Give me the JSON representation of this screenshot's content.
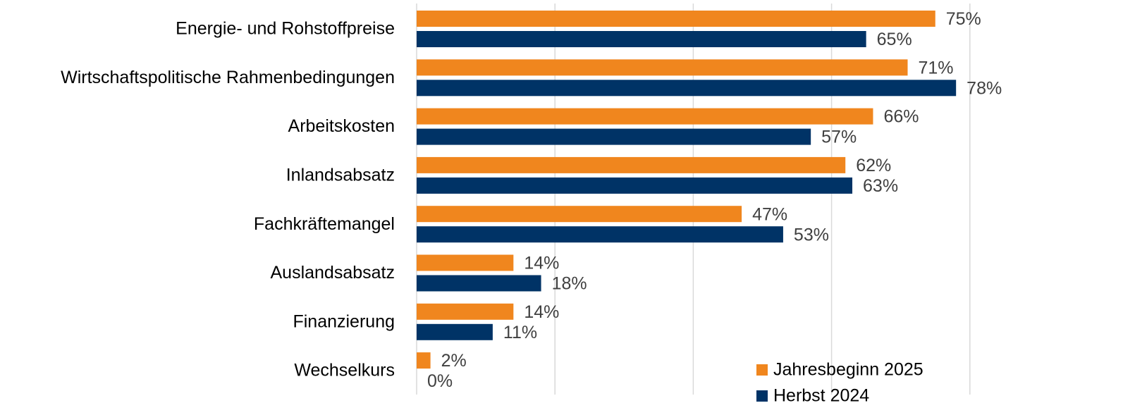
{
  "chart_data": {
    "type": "hbar",
    "categories": [
      "Energie- und Rohstoffpreise",
      "Wirtschaftspolitische Rahmenbedingungen",
      "Arbeitskosten",
      "Inlandsabsatz",
      "Fachkräftemangel",
      "Auslandsabsatz",
      "Finanzierung",
      "Wechselkurs"
    ],
    "series": [
      {
        "name": "Jahresbeginn 2025",
        "color": "#f0861e",
        "values": [
          75,
          71,
          66,
          62,
          47,
          14,
          14,
          2
        ],
        "value_labels": [
          "75%",
          "71%",
          "66%",
          "62%",
          "47%",
          "14%",
          "14%",
          "2%"
        ]
      },
      {
        "name": "Herbst 2024",
        "color": "#003366",
        "values": [
          65,
          78,
          57,
          63,
          53,
          18,
          11,
          0
        ],
        "value_labels": [
          "65%",
          "78%",
          "57%",
          "63%",
          "53%",
          "18%",
          "11%",
          "0%"
        ]
      }
    ],
    "xlim": [
      0,
      100
    ],
    "xticks": [
      0,
      20,
      40,
      60,
      80
    ],
    "grid": true,
    "legend": "lower right"
  }
}
